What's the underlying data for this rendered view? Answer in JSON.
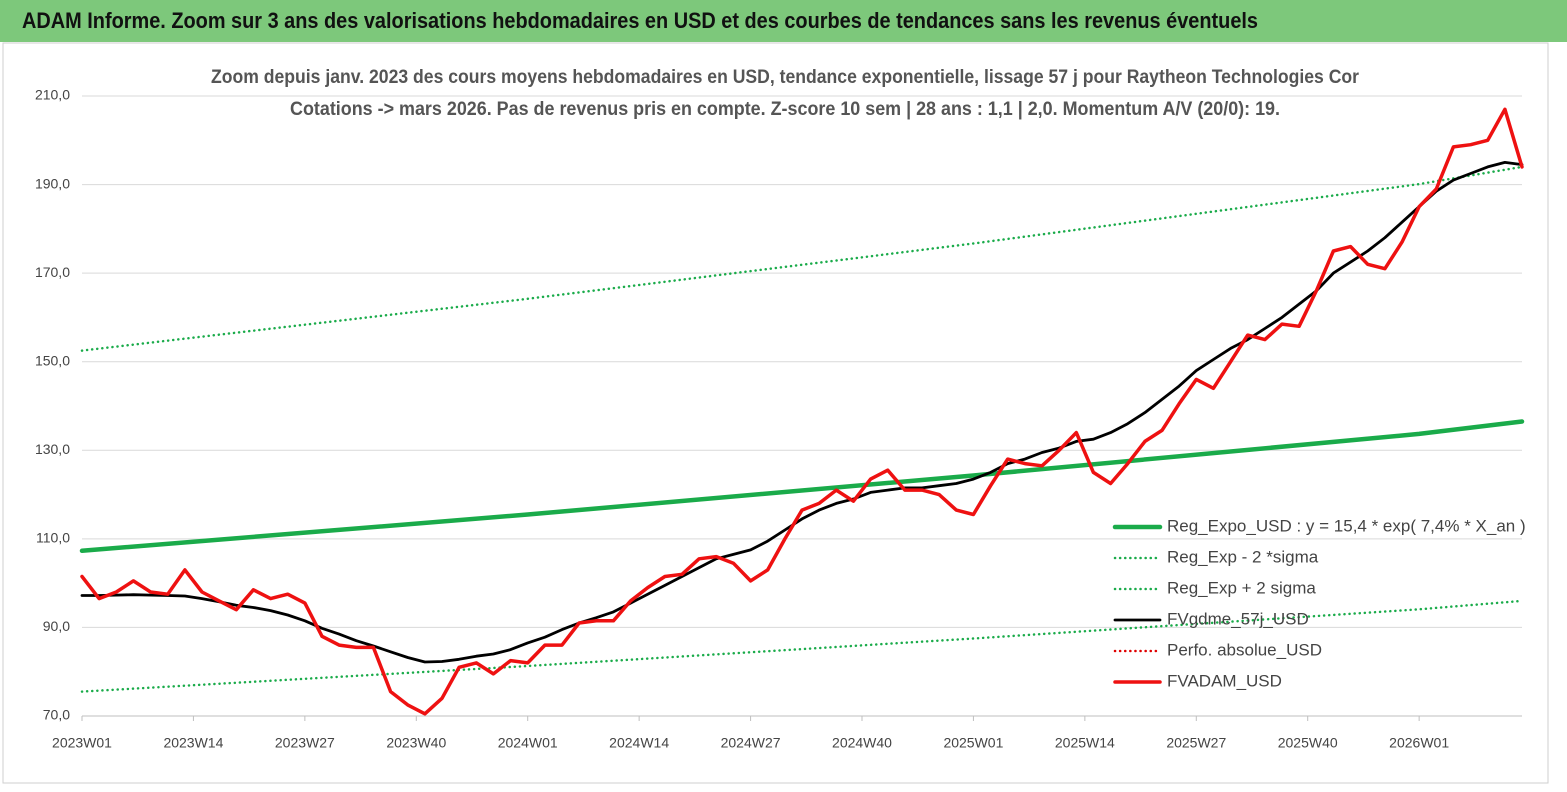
{
  "chart_data": {
    "type": "line",
    "title": "ADAM Informe. Zoom sur 3 ans des valorisations hebdomadaires en USD et des courbes de tendances sans les revenus éventuels",
    "subtitle": [
      "Zoom depuis janv. 2023 des cours moyens hebdomadaires en USD, tendance exponentielle, lissage 57 j pour Raytheon Technologies Cor",
      "Cotations -> mars 2026. Pas de revenus pris en compte. Z-score 10 sem  | 28 ans : 1,1 | 2,0. Momentum A/V (20/0): 19."
    ],
    "x": [
      0,
      2,
      4,
      6,
      8,
      10,
      12,
      14,
      16,
      18,
      20,
      22,
      24,
      26,
      28,
      30,
      32,
      34,
      36,
      38,
      40,
      42,
      44,
      46,
      48,
      50,
      52,
      54,
      56,
      58,
      60,
      62,
      64,
      66,
      68,
      70,
      72,
      74,
      76,
      78,
      80,
      82,
      84,
      86,
      88,
      90,
      92,
      94,
      96,
      98,
      100,
      102,
      104,
      106,
      108,
      110,
      112,
      114,
      116,
      118,
      120,
      122,
      124,
      126,
      128,
      130,
      132,
      134,
      136,
      138,
      140,
      142,
      144,
      146,
      148,
      150,
      152,
      154,
      156,
      158,
      160,
      162,
      164,
      166,
      168
    ],
    "xlim": [
      0,
      168
    ],
    "xticks": [
      {
        "value": 0,
        "label": "2023W01"
      },
      {
        "value": 13,
        "label": "2023W14"
      },
      {
        "value": 26,
        "label": "2023W27"
      },
      {
        "value": 39,
        "label": "2023W40"
      },
      {
        "value": 52,
        "label": "2024W01"
      },
      {
        "value": 65,
        "label": "2024W14"
      },
      {
        "value": 78,
        "label": "2024W27"
      },
      {
        "value": 91,
        "label": "2024W40"
      },
      {
        "value": 104,
        "label": "2025W01"
      },
      {
        "value": 117,
        "label": "2025W14"
      },
      {
        "value": 130,
        "label": "2025W27"
      },
      {
        "value": 143,
        "label": "2025W40"
      },
      {
        "value": 156,
        "label": "2026W01"
      }
    ],
    "ylim": [
      70,
      210
    ],
    "yticks": [
      {
        "value": 70,
        "label": "70,0"
      },
      {
        "value": 90,
        "label": "90,0"
      },
      {
        "value": 110,
        "label": "110,0"
      },
      {
        "value": 130,
        "label": "130,0"
      },
      {
        "value": 150,
        "label": "150,0"
      },
      {
        "value": 170,
        "label": "170,0"
      },
      {
        "value": 190,
        "label": "190,0"
      },
      {
        "value": 210,
        "label": "210,0"
      }
    ],
    "grid": true,
    "legend": "right",
    "series": [
      {
        "name": "Reg_Expo_USD : y = 15,4 * exp( 7,4% *  X_an )",
        "color": "#1aab4a",
        "dash": "solid",
        "width": 4.5,
        "x": [
          0,
          52,
          104,
          156,
          168
        ],
        "values": [
          107.3,
          115.5,
          124.3,
          133.7,
          136.5
        ]
      },
      {
        "name": "Reg_Exp - 2 *sigma",
        "color": "#1aab4a",
        "dash": "dotted",
        "width": 2.5,
        "x": [
          0,
          52,
          104,
          156,
          168
        ],
        "values": [
          75.5,
          81.3,
          87.5,
          94.1,
          96
        ]
      },
      {
        "name": "Reg_Exp + 2 sigma",
        "color": "#1aab4a",
        "dash": "dotted",
        "width": 2.5,
        "x": [
          0,
          52,
          104,
          156,
          168
        ],
        "values": [
          152.5,
          164.2,
          176.7,
          190.1,
          194
        ]
      },
      {
        "name": "FVgdme_57j_USD",
        "color": "#000000",
        "dash": "solid",
        "width": 2.8,
        "values": [
          97.2,
          97.2,
          97.3,
          97.4,
          97.3,
          97.2,
          97.1,
          96.5,
          95.8,
          95,
          94.5,
          93.8,
          92.8,
          91.5,
          89.8,
          88.5,
          87,
          85.8,
          84.5,
          83.2,
          82.2,
          82.3,
          82.8,
          83.5,
          84,
          85,
          86.5,
          87.8,
          89.5,
          91,
          92.2,
          93.5,
          95.5,
          97.5,
          99.5,
          101.5,
          103.5,
          105.5,
          106.5,
          107.5,
          109.5,
          112,
          114.5,
          116.5,
          118,
          119,
          120.5,
          121,
          121.5,
          121.5,
          122,
          122.5,
          123.5,
          125,
          127,
          128,
          129.5,
          130.5,
          132,
          132.5,
          134,
          136,
          138.5,
          141.5,
          144.5,
          148,
          150.5,
          153,
          155,
          157.5,
          160,
          163,
          166,
          170,
          172.5,
          175,
          178,
          181.5,
          185,
          188.5,
          191,
          192.5,
          194,
          195,
          194.5
        ]
      },
      {
        "name": "Perfo. absolue_USD",
        "color": "#e00000",
        "dash": "dotted",
        "width": 2.5
      },
      {
        "name": "FVADAM_USD",
        "color": "#ee1111",
        "dash": "solid",
        "width": 3.5,
        "values": [
          101.5,
          96.5,
          98,
          100.5,
          98,
          97.5,
          103,
          98,
          96,
          94,
          98.5,
          96.5,
          97.5,
          95.5,
          88,
          86,
          85.5,
          85.5,
          75.5,
          72.5,
          70.5,
          74,
          81,
          82,
          79.5,
          82.5,
          82,
          86,
          86,
          91,
          91.5,
          91.5,
          96,
          99,
          101.5,
          102,
          105.5,
          106,
          104.5,
          100.5,
          103,
          110,
          116.5,
          118,
          121,
          118.5,
          123.5,
          125.5,
          121,
          121,
          120,
          116.5,
          115.5,
          122,
          128,
          127,
          126.5,
          130,
          134,
          125,
          122.5,
          127,
          132,
          134.5,
          140.5,
          146,
          144,
          150,
          156,
          155,
          158.5,
          158,
          166,
          175,
          176,
          172,
          171,
          177,
          185,
          189,
          198.5,
          199,
          200,
          207,
          194
        ]
      }
    ],
    "draw_order": [
      0,
      1,
      2,
      4,
      3,
      5
    ]
  }
}
